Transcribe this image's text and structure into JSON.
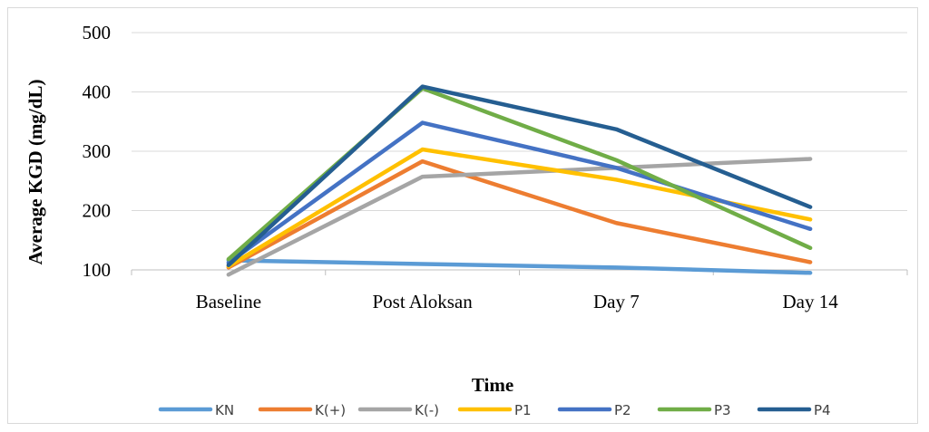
{
  "chart_data": {
    "type": "line",
    "title": "",
    "xlabel": "Time",
    "ylabel": "Average KGD (mg/dL)",
    "categories": [
      "Baseline",
      "Post Aloksan",
      "Day 7",
      "Day 14"
    ],
    "ylim": [
      100,
      500
    ],
    "yticks": [
      "100",
      "200",
      "300",
      "400",
      "500"
    ],
    "grid": true,
    "legend_position": "bottom",
    "series": [
      {
        "name": "KN",
        "color": "#5B9BD5",
        "values": [
          116,
          110,
          104,
          95
        ]
      },
      {
        "name": "K(+)",
        "color": "#ED7D31",
        "values": [
          104,
          283,
          179,
          113
        ]
      },
      {
        "name": "K(-)",
        "color": "#A5A5A5",
        "values": [
          92,
          257,
          272,
          287
        ]
      },
      {
        "name": "P1",
        "color": "#FFC000",
        "values": [
          106,
          303,
          252,
          185
        ]
      },
      {
        "name": "P2",
        "color": "#4472C4",
        "values": [
          112,
          348,
          272,
          169
        ]
      },
      {
        "name": "P3",
        "color": "#70AD47",
        "values": [
          118,
          406,
          285,
          137
        ]
      },
      {
        "name": "P4",
        "color": "#255E91",
        "values": [
          108,
          409,
          337,
          206
        ]
      }
    ]
  }
}
